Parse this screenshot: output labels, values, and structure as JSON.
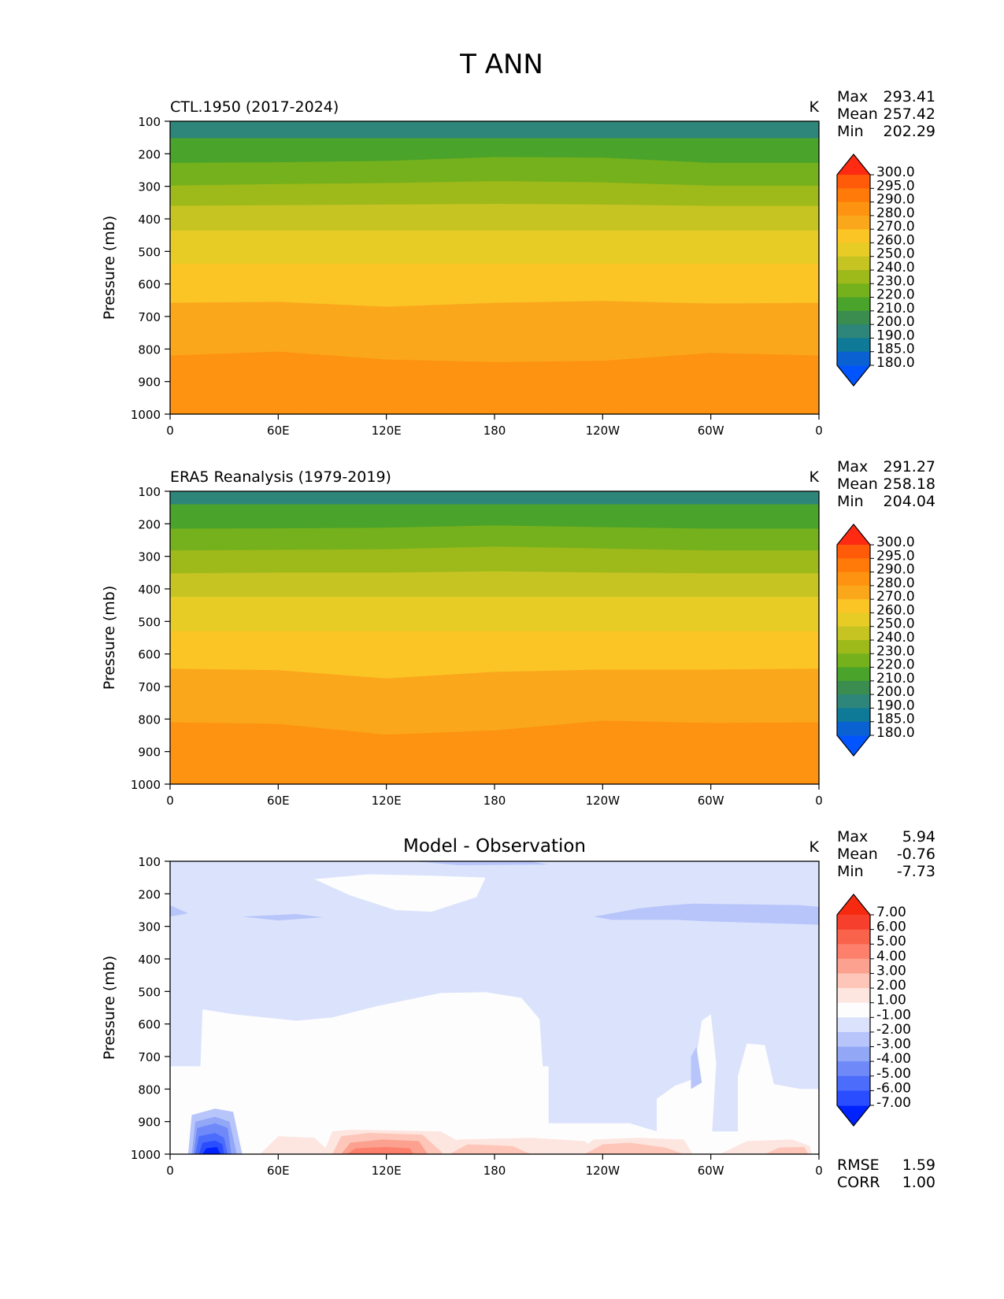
{
  "figure_title": "T ANN",
  "longitude_ticks": [
    "0",
    "60E",
    "120E",
    "180",
    "120W",
    "60W",
    "0"
  ],
  "pressure_ticks": [
    "100",
    "200",
    "300",
    "400",
    "500",
    "600",
    "700",
    "800",
    "900",
    "1000"
  ],
  "abs_levels": [
    "180.0",
    "185.0",
    "190.0",
    "200.0",
    "210.0",
    "220.0",
    "230.0",
    "240.0",
    "250.0",
    "260.0",
    "270.0",
    "280.0",
    "290.0",
    "295.0",
    "300.0"
  ],
  "abs_colors": [
    "#0055ff",
    "#0a62d2",
    "#0f7a98",
    "#2d8679",
    "#3a8d4e",
    "#4aa32a",
    "#75b11c",
    "#9eb91a",
    "#c6c423",
    "#e8cc26",
    "#fbc526",
    "#fba71b",
    "#fd9310",
    "#ff7a08",
    "#ff5b08",
    "#ff2a12"
  ],
  "diff_levels": [
    "-7.00",
    "-6.00",
    "-5.00",
    "-4.00",
    "-3.00",
    "-2.00",
    "-1.00",
    "1.00",
    "2.00",
    "3.00",
    "4.00",
    "5.00",
    "6.00",
    "7.00"
  ],
  "diff_colors": [
    "#0022ff",
    "#2a4eff",
    "#4c6cfb",
    "#6f8af8",
    "#93a7f7",
    "#b7c5fa",
    "#dbe3fc",
    "#fdfdfd",
    "#fde5e0",
    "#fdc6b8",
    "#fca08f",
    "#fc806c",
    "#f9634c",
    "#f63f2c",
    "#f62a10"
  ],
  "chart_data": [
    {
      "type": "contour",
      "panel": "model",
      "title": "CTL.1950 (2017-2024)",
      "units": "K",
      "xlabel": "",
      "ylabel": "Pressure (mb)",
      "xlim": [
        0,
        360
      ],
      "ylim": [
        1000,
        100
      ],
      "stats": {
        "max": "293.41",
        "mean": "257.42",
        "min": "202.29"
      },
      "stat_labels": {
        "max": "Max",
        "mean": "Mean",
        "min": "Min"
      },
      "contour_bands": [
        {
          "upper_level": 210,
          "pressure_boundary": [
            152,
            152,
            152,
            152,
            152,
            152,
            152
          ]
        },
        {
          "upper_level": 220,
          "pressure_boundary": [
            228,
            226,
            222,
            210,
            212,
            228,
            228
          ]
        },
        {
          "upper_level": 230,
          "pressure_boundary": [
            298,
            293,
            290,
            284,
            288,
            298,
            298
          ]
        },
        {
          "upper_level": 240,
          "pressure_boundary": [
            360,
            358,
            356,
            354,
            356,
            360,
            360
          ]
        },
        {
          "upper_level": 250,
          "pressure_boundary": [
            436,
            436,
            436,
            436,
            436,
            436,
            436
          ]
        },
        {
          "upper_level": 260,
          "pressure_boundary": [
            538,
            538,
            538,
            538,
            538,
            538,
            538
          ]
        },
        {
          "upper_level": 270,
          "pressure_boundary": [
            658,
            655,
            670,
            658,
            652,
            660,
            658
          ]
        },
        {
          "upper_level": 280,
          "pressure_boundary": [
            820,
            808,
            832,
            840,
            836,
            812,
            820
          ]
        },
        {
          "upper_level": 290,
          "pressure_boundary": [
            1000,
            990,
            985,
            995,
            990,
            995,
            1000
          ]
        }
      ]
    },
    {
      "type": "contour",
      "panel": "observation",
      "title": "ERA5 Reanalysis (1979-2019)",
      "units": "K",
      "xlabel": "",
      "ylabel": "Pressure (mb)",
      "xlim": [
        0,
        360
      ],
      "ylim": [
        1000,
        100
      ],
      "stats": {
        "max": "291.27",
        "mean": "258.18",
        "min": "204.04"
      },
      "stat_labels": {
        "max": "Max",
        "mean": "Mean",
        "min": "Min"
      },
      "contour_bands": [
        {
          "upper_level": 210,
          "pressure_boundary": [
            140,
            140,
            140,
            140,
            140,
            140,
            140
          ]
        },
        {
          "upper_level": 220,
          "pressure_boundary": [
            215,
            214,
            212,
            205,
            210,
            215,
            215
          ]
        },
        {
          "upper_level": 230,
          "pressure_boundary": [
            282,
            280,
            278,
            270,
            276,
            282,
            282
          ]
        },
        {
          "upper_level": 240,
          "pressure_boundary": [
            352,
            350,
            350,
            346,
            350,
            352,
            352
          ]
        },
        {
          "upper_level": 250,
          "pressure_boundary": [
            425,
            425,
            425,
            425,
            425,
            425,
            425
          ]
        },
        {
          "upper_level": 260,
          "pressure_boundary": [
            530,
            530,
            530,
            530,
            530,
            530,
            530
          ]
        },
        {
          "upper_level": 270,
          "pressure_boundary": [
            645,
            650,
            675,
            655,
            648,
            648,
            645
          ]
        },
        {
          "upper_level": 280,
          "pressure_boundary": [
            810,
            815,
            848,
            835,
            805,
            812,
            810
          ]
        },
        {
          "upper_level": 290,
          "pressure_boundary": [
            1000,
            995,
            1000,
            1000,
            1000,
            1000,
            1000
          ]
        }
      ]
    },
    {
      "type": "contour",
      "panel": "difference",
      "title": "Model - Observation",
      "units": "K",
      "xlabel": "",
      "ylabel": "Pressure (mb)",
      "xlim": [
        0,
        360
      ],
      "ylim": [
        1000,
        100
      ],
      "stats": {
        "max": "5.94",
        "mean": "-0.76",
        "min": "-7.73"
      },
      "stat_labels": {
        "max": "Max",
        "mean": "Mean",
        "min": "Min"
      },
      "extra_stats": {
        "rmse": "1.59",
        "corr": "1.00"
      },
      "extra_labels": {
        "rmse": "RMSE",
        "corr": "CORR"
      },
      "background_level": -1,
      "regions": [
        {
          "level": 0,
          "polygon": [
            [
              15,
              1000
            ],
            [
              18,
              555
            ],
            [
              35,
              570
            ],
            [
              70,
              590
            ],
            [
              90,
              580
            ],
            [
              115,
              545
            ],
            [
              150,
              505
            ],
            [
              175,
              502
            ],
            [
              195,
              520
            ],
            [
              205,
              585
            ],
            [
              210,
              1000
            ]
          ]
        },
        {
          "level": 0,
          "polygon": [
            [
              185,
              800
            ],
            [
              195,
              760
            ],
            [
              205,
              770
            ],
            [
              210,
              1000
            ],
            [
              185,
              1000
            ]
          ]
        },
        {
          "level": 0,
          "polygon": [
            [
              270,
              830
            ],
            [
              280,
              790
            ],
            [
              290,
              770
            ],
            [
              295,
              590
            ],
            [
              300,
              570
            ],
            [
              303,
              720
            ],
            [
              300,
              1000
            ],
            [
              270,
              1000
            ]
          ]
        },
        {
          "level": 0,
          "polygon": [
            [
              315,
              760
            ],
            [
              320,
              660
            ],
            [
              330,
              665
            ],
            [
              335,
              785
            ],
            [
              350,
              800
            ],
            [
              360,
              800
            ],
            [
              360,
              1000
            ],
            [
              315,
              1000
            ]
          ]
        },
        {
          "level": 0,
          "polygon": [
            [
              0,
              730
            ],
            [
              210,
              730
            ],
            [
              210,
              1000
            ],
            [
              0,
              1000
            ]
          ]
        },
        {
          "level": 0,
          "polygon": [
            [
              210,
              905
            ],
            [
              255,
              905
            ],
            [
              270,
              930
            ],
            [
              360,
              930
            ],
            [
              360,
              1000
            ],
            [
              210,
              1000
            ]
          ]
        },
        {
          "level": 0,
          "polygon": [
            [
              80,
              155
            ],
            [
              110,
              140
            ],
            [
              150,
              145
            ],
            [
              175,
              150
            ],
            [
              170,
              210
            ],
            [
              145,
              255
            ],
            [
              125,
              250
            ],
            [
              100,
              205
            ]
          ]
        },
        {
          "level": -2,
          "polygon": [
            [
              0,
              235
            ],
            [
              10,
              260
            ],
            [
              0,
              270
            ]
          ]
        },
        {
          "level": -2,
          "polygon": [
            [
              40,
              270
            ],
            [
              70,
              262
            ],
            [
              85,
              272
            ],
            [
              60,
              282
            ]
          ]
        },
        {
          "level": -2,
          "polygon": [
            [
              235,
              270
            ],
            [
              260,
              245
            ],
            [
              275,
              236
            ],
            [
              290,
              230
            ],
            [
              330,
              233
            ],
            [
              350,
              235
            ],
            [
              360,
              240
            ],
            [
              360,
              295
            ],
            [
              330,
              290
            ],
            [
              300,
              285
            ],
            [
              280,
              280
            ],
            [
              245,
              280
            ]
          ]
        },
        {
          "level": -2,
          "polygon": [
            [
              135,
              100
            ],
            [
              200,
              100
            ],
            [
              210,
              110
            ],
            [
              160,
              112
            ]
          ]
        },
        {
          "level": -2,
          "polygon": [
            [
              289,
              700
            ],
            [
              292,
              670
            ],
            [
              295,
              780
            ],
            [
              289,
              800
            ]
          ]
        },
        {
          "level": 1,
          "polygon": [
            [
              50,
              1000
            ],
            [
              60,
              945
            ],
            [
              80,
              950
            ],
            [
              90,
              1000
            ]
          ]
        },
        {
          "level": 1,
          "polygon": [
            [
              85,
              1000
            ],
            [
              90,
              930
            ],
            [
              100,
              925
            ],
            [
              150,
              930
            ],
            [
              160,
              960
            ],
            [
              170,
              1000
            ]
          ]
        },
        {
          "level": 2,
          "polygon": [
            [
              90,
              1000
            ],
            [
              95,
              945
            ],
            [
              110,
              935
            ],
            [
              140,
              940
            ],
            [
              152,
              1000
            ]
          ]
        },
        {
          "level": 3,
          "polygon": [
            [
              95,
              1000
            ],
            [
              100,
              965
            ],
            [
              118,
              955
            ],
            [
              138,
              960
            ],
            [
              143,
              1000
            ]
          ]
        },
        {
          "level": 4,
          "polygon": [
            [
              98,
              1000
            ],
            [
              103,
              982
            ],
            [
              120,
              978
            ],
            [
              133,
              982
            ],
            [
              135,
              1000
            ]
          ]
        },
        {
          "level": 1,
          "polygon": [
            [
              150,
              1000
            ],
            [
              160,
              955
            ],
            [
              200,
              950
            ],
            [
              230,
              960
            ],
            [
              240,
              1000
            ]
          ]
        },
        {
          "level": 2,
          "polygon": [
            [
              155,
              1000
            ],
            [
              165,
              970
            ],
            [
              190,
              975
            ],
            [
              200,
              1000
            ]
          ]
        },
        {
          "level": 1,
          "polygon": [
            [
              225,
              1000
            ],
            [
              235,
              955
            ],
            [
              260,
              950
            ],
            [
              285,
              955
            ],
            [
              290,
              1000
            ]
          ]
        },
        {
          "level": 2,
          "polygon": [
            [
              230,
              1000
            ],
            [
              240,
              970
            ],
            [
              255,
              965
            ],
            [
              275,
              980
            ],
            [
              285,
              1000
            ]
          ]
        },
        {
          "level": 1,
          "polygon": [
            [
              305,
              1000
            ],
            [
              320,
              960
            ],
            [
              345,
              955
            ],
            [
              355,
              975
            ],
            [
              356,
              1000
            ]
          ]
        },
        {
          "level": 2,
          "polygon": [
            [
              330,
              1000
            ],
            [
              338,
              980
            ],
            [
              352,
              978
            ],
            [
              354,
              1000
            ]
          ]
        },
        {
          "level": -2,
          "polygon": [
            [
              10,
              1000
            ],
            [
              12,
              880
            ],
            [
              25,
              860
            ],
            [
              35,
              870
            ],
            [
              40,
              1000
            ]
          ]
        },
        {
          "level": -3,
          "polygon": [
            [
              12,
              1000
            ],
            [
              14,
              900
            ],
            [
              25,
              885
            ],
            [
              33,
              900
            ],
            [
              37,
              1000
            ]
          ]
        },
        {
          "level": -4,
          "polygon": [
            [
              13,
              1000
            ],
            [
              15,
              920
            ],
            [
              25,
              905
            ],
            [
              32,
              920
            ],
            [
              34,
              1000
            ]
          ]
        },
        {
          "level": -5,
          "polygon": [
            [
              14,
              1000
            ],
            [
              16,
              945
            ],
            [
              25,
              935
            ],
            [
              30,
              950
            ],
            [
              32,
              1000
            ]
          ]
        },
        {
          "level": -6,
          "polygon": [
            [
              16,
              1000
            ],
            [
              18,
              965
            ],
            [
              25,
              958
            ],
            [
              29,
              970
            ],
            [
              30,
              1000
            ]
          ]
        },
        {
          "level": -7,
          "polygon": [
            [
              18,
              1000
            ],
            [
              20,
              982
            ],
            [
              26,
              978
            ],
            [
              28,
              1000
            ]
          ]
        }
      ]
    }
  ]
}
